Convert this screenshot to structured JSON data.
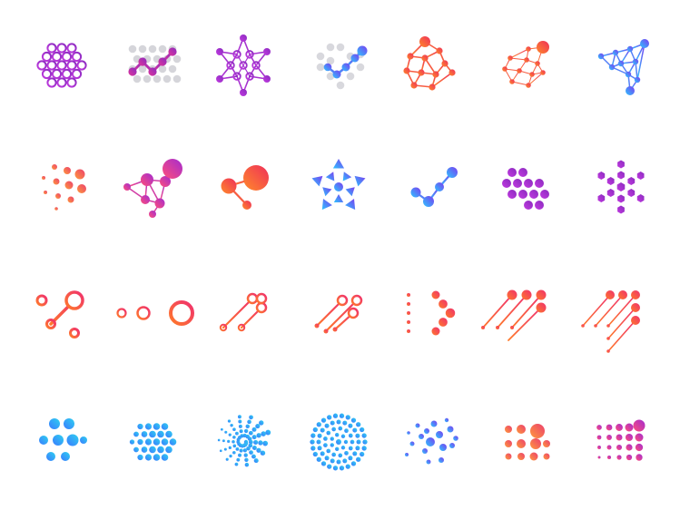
{
  "gradients": {
    "purple": [
      "#c23be0",
      "#8a2bbf"
    ],
    "magenta_purple": [
      "#e0359b",
      "#8a2bbf"
    ],
    "orange_red": [
      "#ff8a2a",
      "#ef2f5a"
    ],
    "orange_pink": [
      "#ff9a3c",
      "#ec3f6e"
    ],
    "pink_purple": [
      "#ff4f7a",
      "#a42bd0"
    ],
    "blue_purple": [
      "#2ec4ff",
      "#7a3cf0"
    ],
    "blue_cyan": [
      "#3a7bff",
      "#2ed0f0"
    ],
    "red_orange_line": [
      "#ff7a2a",
      "#f0306e"
    ],
    "grey": [
      "#d9d9de",
      "#c9c9cf"
    ]
  },
  "grid": {
    "rows": 4,
    "columns": 7
  },
  "icons": [
    {
      "row": 0,
      "col": 0,
      "style": "ring-hex-cluster",
      "gradient": "purple"
    },
    {
      "row": 0,
      "col": 1,
      "style": "dot-grid-zigzag",
      "gradient": "magenta_purple"
    },
    {
      "row": 0,
      "col": 2,
      "style": "star-network",
      "gradient": "purple"
    },
    {
      "row": 0,
      "col": 3,
      "style": "dot-grid-path",
      "gradient": "blue_purple"
    },
    {
      "row": 0,
      "col": 4,
      "style": "triangle-network",
      "gradient": "orange_red"
    },
    {
      "row": 0,
      "col": 5,
      "style": "thin-network",
      "gradient": "orange_red"
    },
    {
      "row": 0,
      "col": 6,
      "style": "triangle-mesh",
      "gradient": "blue_purple"
    },
    {
      "row": 1,
      "col": 0,
      "style": "fading-dots",
      "gradient": "orange_pink"
    },
    {
      "row": 1,
      "col": 1,
      "style": "node-graph",
      "gradient": "pink_purple"
    },
    {
      "row": 1,
      "col": 2,
      "style": "three-nodes",
      "gradient": "orange_red"
    },
    {
      "row": 1,
      "col": 3,
      "style": "triangle-star",
      "gradient": "blue_purple"
    },
    {
      "row": 1,
      "col": 4,
      "style": "chain-nodes",
      "gradient": "blue_purple"
    },
    {
      "row": 1,
      "col": 5,
      "style": "diamond-dots",
      "gradient": "purple"
    },
    {
      "row": 1,
      "col": 6,
      "style": "hex-flower",
      "gradient": "purple"
    },
    {
      "row": 2,
      "col": 0,
      "style": "branch-rings",
      "gradient": "red_orange_line"
    },
    {
      "row": 2,
      "col": 1,
      "style": "ring-chain",
      "gradient": "red_orange_line"
    },
    {
      "row": 2,
      "col": 2,
      "style": "diagonal-pins-2",
      "gradient": "red_orange_line"
    },
    {
      "row": 2,
      "col": 3,
      "style": "diagonal-pins-3",
      "gradient": "red_orange_line"
    },
    {
      "row": 2,
      "col": 4,
      "style": "arrow-lines",
      "gradient": "red_orange_line"
    },
    {
      "row": 2,
      "col": 5,
      "style": "parallel-pins",
      "gradient": "red_orange_line"
    },
    {
      "row": 2,
      "col": 6,
      "style": "parallel-pins-dense",
      "gradient": "red_orange_line"
    },
    {
      "row": 3,
      "col": 0,
      "style": "hex-dots-large",
      "gradient": "blue_cyan"
    },
    {
      "row": 3,
      "col": 1,
      "style": "hex-dots-dense",
      "gradient": "blue_cyan"
    },
    {
      "row": 3,
      "col": 2,
      "style": "dot-spiral",
      "gradient": "blue_cyan"
    },
    {
      "row": 3,
      "col": 3,
      "style": "concentric-dots",
      "gradient": "blue_cyan"
    },
    {
      "row": 3,
      "col": 4,
      "style": "scatter-burst",
      "gradient": "blue_purple"
    },
    {
      "row": 3,
      "col": 5,
      "style": "square-dot-grid",
      "gradient": "orange_pink"
    },
    {
      "row": 3,
      "col": 6,
      "style": "dot-grid-fade",
      "gradient": "pink_purple"
    }
  ]
}
